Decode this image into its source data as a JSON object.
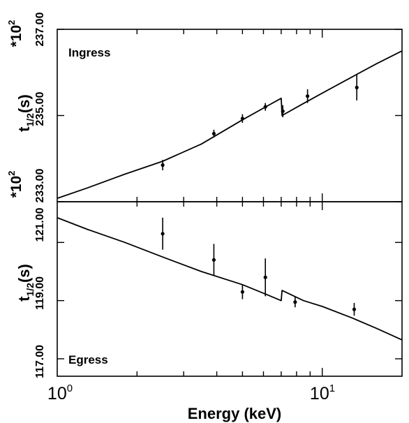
{
  "chart_data": {
    "type": "line",
    "x_scale": "log",
    "xlim": [
      1,
      20
    ],
    "xlabel": "Energy (keV)",
    "x_tick_labels": [
      {
        "base": "10",
        "exp": "0",
        "value": 1
      },
      {
        "base": "10",
        "exp": "1",
        "value": 10
      }
    ],
    "panels": [
      {
        "name": "ingress",
        "label": "Ingress",
        "ylabel_base": "t",
        "ylabel_sub": "1/2",
        "ylabel_tail": "(s)",
        "scale_base": "*10",
        "scale_exp": "2",
        "ylim": [
          233.0,
          237.0
        ],
        "y_ticks": [
          233.0,
          235.0,
          237.0
        ],
        "y_tick_labels": [
          "233.00",
          "235.00",
          "237.00"
        ],
        "model": {
          "x": [
            1.0,
            1.3,
            1.8,
            2.5,
            3.5,
            5.0,
            6.2,
            7.0,
            7.05,
            8.5,
            10.0,
            13.0,
            16.0,
            20.0
          ],
          "y": [
            233.08,
            233.32,
            233.64,
            233.94,
            234.34,
            234.9,
            235.22,
            235.4,
            235.0,
            235.28,
            235.52,
            235.9,
            236.2,
            236.5
          ]
        },
        "points": [
          {
            "x": 2.5,
            "y": 233.85,
            "err": 0.12
          },
          {
            "x": 3.9,
            "y": 234.58,
            "err": 0.09
          },
          {
            "x": 5.0,
            "y": 234.93,
            "err": 0.1
          },
          {
            "x": 6.1,
            "y": 235.2,
            "err": 0.09
          },
          {
            "x": 7.1,
            "y": 235.1,
            "err": 0.14
          },
          {
            "x": 8.8,
            "y": 235.45,
            "err": 0.16
          },
          {
            "x": 13.5,
            "y": 235.65,
            "err": 0.3
          }
        ]
      },
      {
        "name": "egress",
        "label": "Egress",
        "ylabel_base": "t",
        "ylabel_sub": "1/2",
        "ylabel_tail": "(s)",
        "scale_base": "*10",
        "scale_exp": "2",
        "ylim": [
          116.4,
          122.4
        ],
        "y_ticks": [
          117.0,
          119.0,
          121.0
        ],
        "y_tick_labels": [
          "117.00",
          "119.00",
          "121.00"
        ],
        "model": {
          "x": [
            1.0,
            1.3,
            1.8,
            2.5,
            3.5,
            5.0,
            6.2,
            7.0,
            7.05,
            8.5,
            10.0,
            13.0,
            16.0,
            20.0
          ],
          "y": [
            121.85,
            121.45,
            121.0,
            120.5,
            120.0,
            119.55,
            119.2,
            119.0,
            119.35,
            119.0,
            118.8,
            118.4,
            118.05,
            117.65
          ]
        },
        "points": [
          {
            "x": 2.5,
            "y": 121.3,
            "err": 0.55
          },
          {
            "x": 3.9,
            "y": 120.4,
            "err": 0.55
          },
          {
            "x": 5.0,
            "y": 119.3,
            "err": 0.25
          },
          {
            "x": 6.1,
            "y": 119.8,
            "err": 0.65
          },
          {
            "x": 7.9,
            "y": 118.95,
            "err": 0.18
          },
          {
            "x": 13.2,
            "y": 118.7,
            "err": 0.22
          }
        ]
      }
    ],
    "grid": false,
    "legend": "none"
  }
}
